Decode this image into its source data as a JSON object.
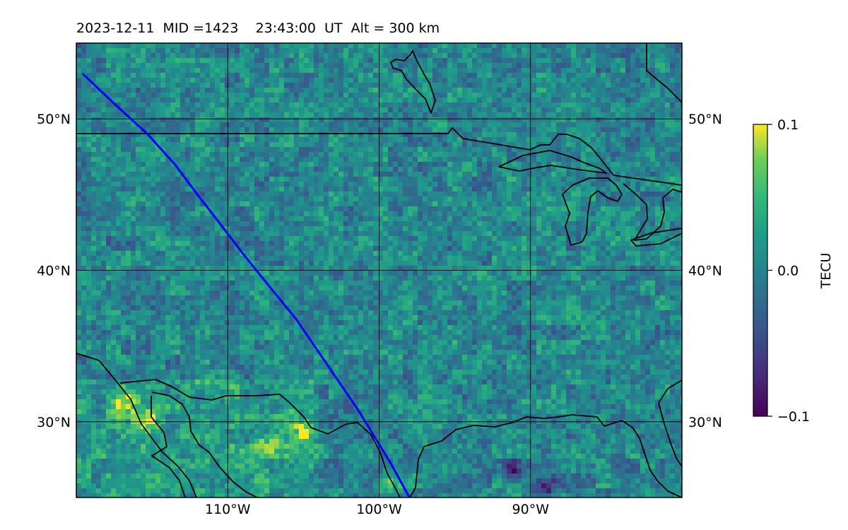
{
  "title": "2023-12-11  MID =1423    23:43:00  UT  Alt = 300 km",
  "map": {
    "lon_range": [
      -120,
      -80
    ],
    "lat_range": [
      25,
      55
    ],
    "lon_ticks": [
      {
        "value": -110,
        "label": "110°W"
      },
      {
        "value": -100,
        "label": "100°W"
      },
      {
        "value": -90,
        "label": "90°W"
      }
    ],
    "lat_ticks": [
      {
        "value": 30,
        "label": "30°N"
      },
      {
        "value": 40,
        "label": "40°N"
      },
      {
        "value": 50,
        "label": "50°N"
      }
    ],
    "gridlines": true,
    "field_colormap": "viridis",
    "track_color": "#0000ff",
    "coastline_color": "#000000"
  },
  "colorbar": {
    "label": "TECU",
    "ticks": [
      {
        "value": 0.1,
        "label": "0.1"
      },
      {
        "value": 0.0,
        "label": "0.0"
      },
      {
        "value": -0.1,
        "label": "−0.1"
      }
    ],
    "range": [
      -0.1,
      0.1
    ]
  },
  "chart_data": {
    "type": "heatmap",
    "title": "2023-12-11  MID =1423    23:43:00  UT  Alt = 300 km",
    "x_range": [
      -120,
      -80
    ],
    "y_range": [
      25,
      55
    ],
    "value_range": [
      -0.1,
      0.1
    ],
    "value_label": "TECU",
    "track": {
      "lon": [
        -119.6,
        -117.5,
        -115.3,
        -113.5,
        -112.0,
        -110.6,
        -109.0,
        -107.3,
        -105.5,
        -104.2,
        -102.7,
        -101.4,
        -100.3,
        -99.2,
        -98.0
      ],
      "lat": [
        53.0,
        51.0,
        49.0,
        47.0,
        45.0,
        43.2,
        41.1,
        39.0,
        36.8,
        34.9,
        32.7,
        30.8,
        29.0,
        27.2,
        25.0
      ]
    },
    "hotspots": [
      {
        "lon": -117,
        "lat": 31.2,
        "value": 0.1
      },
      {
        "lon": -115.5,
        "lat": 30.2,
        "value": 0.1
      },
      {
        "lon": -105.5,
        "lat": 29.5,
        "value": 0.1
      },
      {
        "lon": -107.5,
        "lat": 28.5,
        "value": 0.08
      },
      {
        "lon": -99.5,
        "lat": 26.0,
        "value": 0.09
      },
      {
        "lon": -91.5,
        "lat": 27.0,
        "value": -0.1
      },
      {
        "lon": -89.0,
        "lat": 26.0,
        "value": -0.1
      }
    ]
  }
}
